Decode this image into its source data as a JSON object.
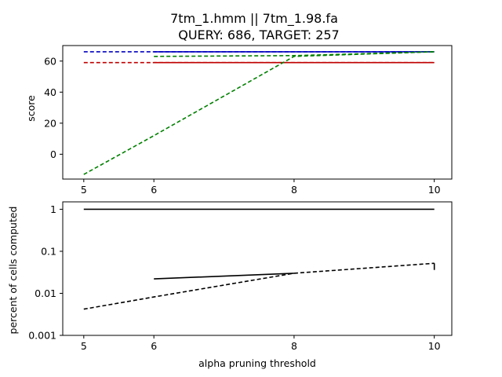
{
  "chart_data": [
    {
      "type": "line",
      "title_line1": "7tm_1.hmm || 7tm_1.98.fa",
      "title_line2": "QUERY: 686, TARGET: 257",
      "xlabel": "",
      "ylabel": "score",
      "xlim": [
        4.7,
        10.25
      ],
      "ylim": [
        -16,
        70
      ],
      "xticks": [
        5,
        6,
        8,
        10
      ],
      "yticks": [
        0,
        20,
        40,
        60
      ],
      "grid": false,
      "series": [
        {
          "color": "#0000bf",
          "dash": false,
          "x": [
            6,
            8,
            10
          ],
          "y": [
            66,
            66,
            66
          ]
        },
        {
          "color": "#0000bf",
          "dash": true,
          "x": [
            5,
            6,
            8,
            10
          ],
          "y": [
            66,
            66,
            66,
            66
          ]
        },
        {
          "color": "#bf0000",
          "dash": false,
          "x": [
            6,
            8,
            10
          ],
          "y": [
            59,
            59,
            59
          ]
        },
        {
          "color": "#bf0000",
          "dash": true,
          "x": [
            5,
            6,
            8,
            10
          ],
          "y": [
            59,
            59,
            59,
            59
          ]
        },
        {
          "color": "#008000",
          "dash": true,
          "x": [
            5,
            6,
            8,
            10
          ],
          "y": [
            -13,
            12,
            63,
            66
          ]
        },
        {
          "color": "#008000",
          "dash": true,
          "x": [
            6,
            8,
            10
          ],
          "y": [
            63,
            63.5,
            66
          ]
        }
      ]
    },
    {
      "type": "line",
      "xlabel": "alpha pruning threshold",
      "ylabel": "percent of cells computed",
      "yscale": "log",
      "xlim": [
        4.7,
        10.25
      ],
      "ylim": [
        0.001,
        1.5
      ],
      "xticks": [
        5,
        6,
        8,
        10
      ],
      "yticks": [
        0.001,
        0.01,
        0.1,
        1
      ],
      "ytick_labels": [
        "0.001",
        "0.01",
        "0.1",
        "1"
      ],
      "grid": false,
      "series": [
        {
          "color": "#000000",
          "dash": false,
          "x": [
            5,
            6,
            8,
            10
          ],
          "y": [
            1,
            1,
            1,
            1
          ]
        },
        {
          "color": "#000000",
          "dash": false,
          "x": [
            6,
            8
          ],
          "y": [
            0.022,
            0.03
          ]
        },
        {
          "color": "#000000",
          "dash": true,
          "x": [
            5,
            6,
            8,
            10
          ],
          "y": [
            0.0042,
            0.0082,
            0.03,
            0.052
          ]
        },
        {
          "color": "#000000",
          "dash": false,
          "x": [
            10,
            10
          ],
          "y": [
            0.036,
            0.052
          ]
        }
      ]
    }
  ]
}
